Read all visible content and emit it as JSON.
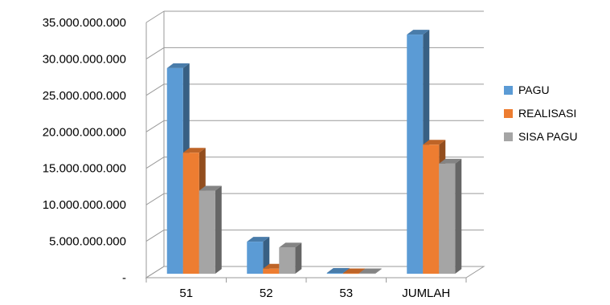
{
  "chart_data": {
    "type": "bar",
    "title": "",
    "xlabel": "",
    "ylabel": "",
    "categories": [
      "51",
      "52",
      "53",
      "JUMLAH"
    ],
    "series": [
      {
        "name": "PAGU",
        "values": [
          28200000000,
          4400000000,
          120000000,
          32800000000
        ],
        "color": "#5b9bd5"
      },
      {
        "name": "REALISASI",
        "values": [
          16600000000,
          700000000,
          60000000,
          17700000000
        ],
        "color": "#ed7d31"
      },
      {
        "name": "SISA PAGU",
        "values": [
          11400000000,
          3600000000,
          60000000,
          15100000000
        ],
        "color": "#a5a5a5"
      }
    ],
    "ylim": [
      0,
      35000000000
    ],
    "y_ticks": [
      0,
      5000000000,
      10000000000,
      15000000000,
      20000000000,
      25000000000,
      30000000000,
      35000000000
    ],
    "y_tick_labels": [
      "-",
      "5.000.000.000",
      "10.000.000.000",
      "15.000.000.000",
      "20.000.000.000",
      "25.000.000.000",
      "30.000.000.000",
      "35.000.000.000"
    ],
    "grid": true,
    "legend_position": "right",
    "style": "3d-clustered-column"
  }
}
